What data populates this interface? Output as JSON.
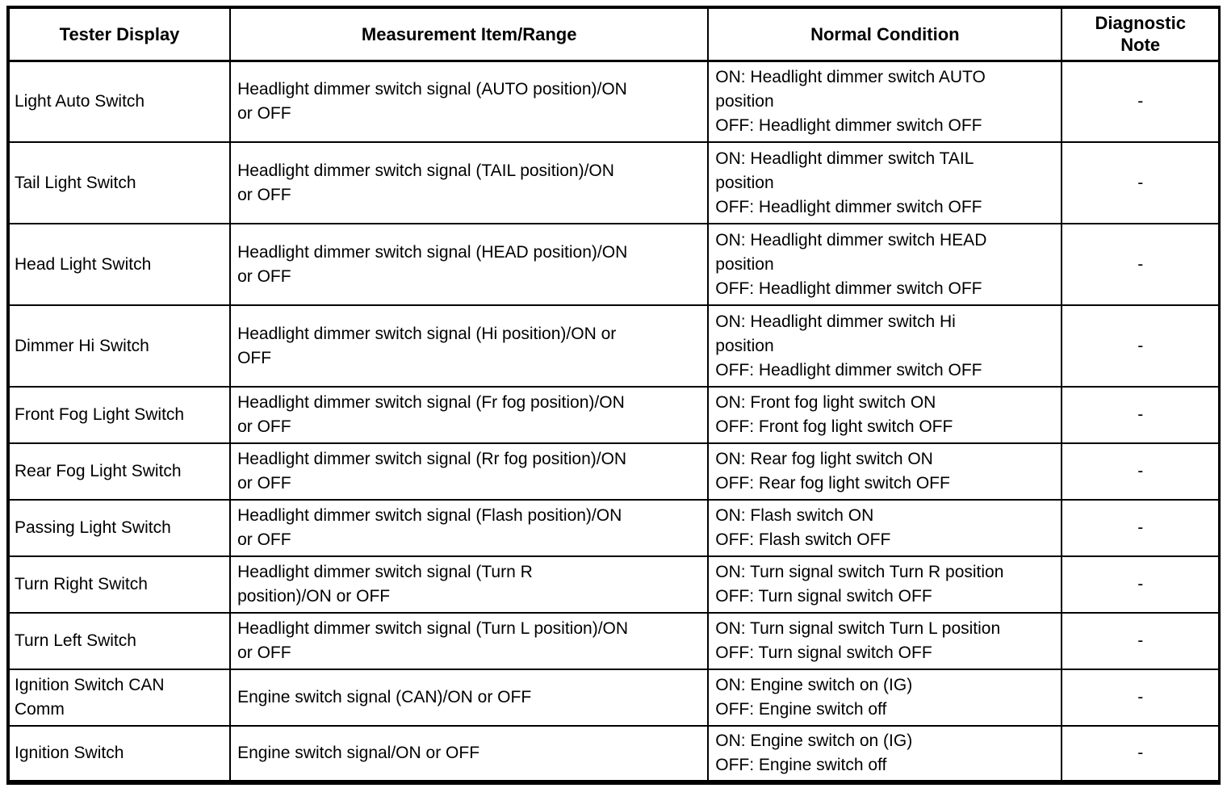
{
  "table": {
    "headers": {
      "tester_display": "Tester Display",
      "measurement": "Measurement Item/Range",
      "normal_condition": "Normal Condition",
      "diagnostic_note": "Diagnostic\nNote"
    },
    "rows": [
      {
        "tester_display": "Light Auto Switch",
        "measurement": "Headlight dimmer switch signal (AUTO position)/ON\nor OFF",
        "normal_condition": "ON: Headlight dimmer switch AUTO\nposition\nOFF: Headlight dimmer switch OFF",
        "diagnostic_note": "-"
      },
      {
        "tester_display": "Tail Light Switch",
        "measurement": "Headlight dimmer switch signal (TAIL position)/ON\nor OFF",
        "normal_condition": "ON: Headlight dimmer switch TAIL\nposition\nOFF: Headlight dimmer switch OFF",
        "diagnostic_note": "-"
      },
      {
        "tester_display": "Head Light Switch",
        "measurement": "Headlight dimmer switch signal (HEAD position)/ON\nor OFF",
        "normal_condition": "ON: Headlight dimmer switch HEAD\nposition\nOFF: Headlight dimmer switch OFF",
        "diagnostic_note": "-"
      },
      {
        "tester_display": "Dimmer Hi Switch",
        "measurement": "Headlight dimmer switch signal (Hi position)/ON or\nOFF",
        "normal_condition": "ON: Headlight dimmer switch Hi\nposition\nOFF: Headlight dimmer switch OFF",
        "diagnostic_note": "-"
      },
      {
        "tester_display": "Front Fog Light Switch",
        "measurement": "Headlight dimmer switch signal (Fr fog position)/ON\nor OFF",
        "normal_condition": "ON: Front fog light switch ON\nOFF: Front fog light switch OFF",
        "diagnostic_note": "-"
      },
      {
        "tester_display": "Rear Fog Light Switch",
        "measurement": "Headlight dimmer switch signal (Rr fog position)/ON\nor OFF",
        "normal_condition": "ON: Rear fog light switch ON\nOFF: Rear fog light switch OFF",
        "diagnostic_note": "-"
      },
      {
        "tester_display": "Passing Light Switch",
        "measurement": "Headlight dimmer switch signal (Flash position)/ON\nor OFF",
        "normal_condition": "ON: Flash switch ON\nOFF: Flash switch OFF",
        "diagnostic_note": "-"
      },
      {
        "tester_display": "Turn Right Switch",
        "measurement": "Headlight dimmer switch signal (Turn R\nposition)/ON or OFF",
        "normal_condition": "ON: Turn signal switch Turn R position\nOFF: Turn signal switch OFF",
        "diagnostic_note": "-"
      },
      {
        "tester_display": "Turn Left Switch",
        "measurement": "Headlight dimmer switch signal (Turn L position)/ON\nor OFF",
        "normal_condition": "ON: Turn signal switch Turn L position\nOFF: Turn signal switch OFF",
        "diagnostic_note": "-"
      },
      {
        "tester_display": "Ignition Switch CAN\nComm",
        "measurement": "Engine switch signal (CAN)/ON or OFF",
        "normal_condition": "ON: Engine switch on (IG)\nOFF: Engine switch off",
        "diagnostic_note": "-"
      },
      {
        "tester_display": "Ignition Switch",
        "measurement": "Engine switch signal/ON or OFF",
        "normal_condition": "ON: Engine switch on (IG)\nOFF: Engine switch off",
        "diagnostic_note": "-"
      }
    ]
  }
}
